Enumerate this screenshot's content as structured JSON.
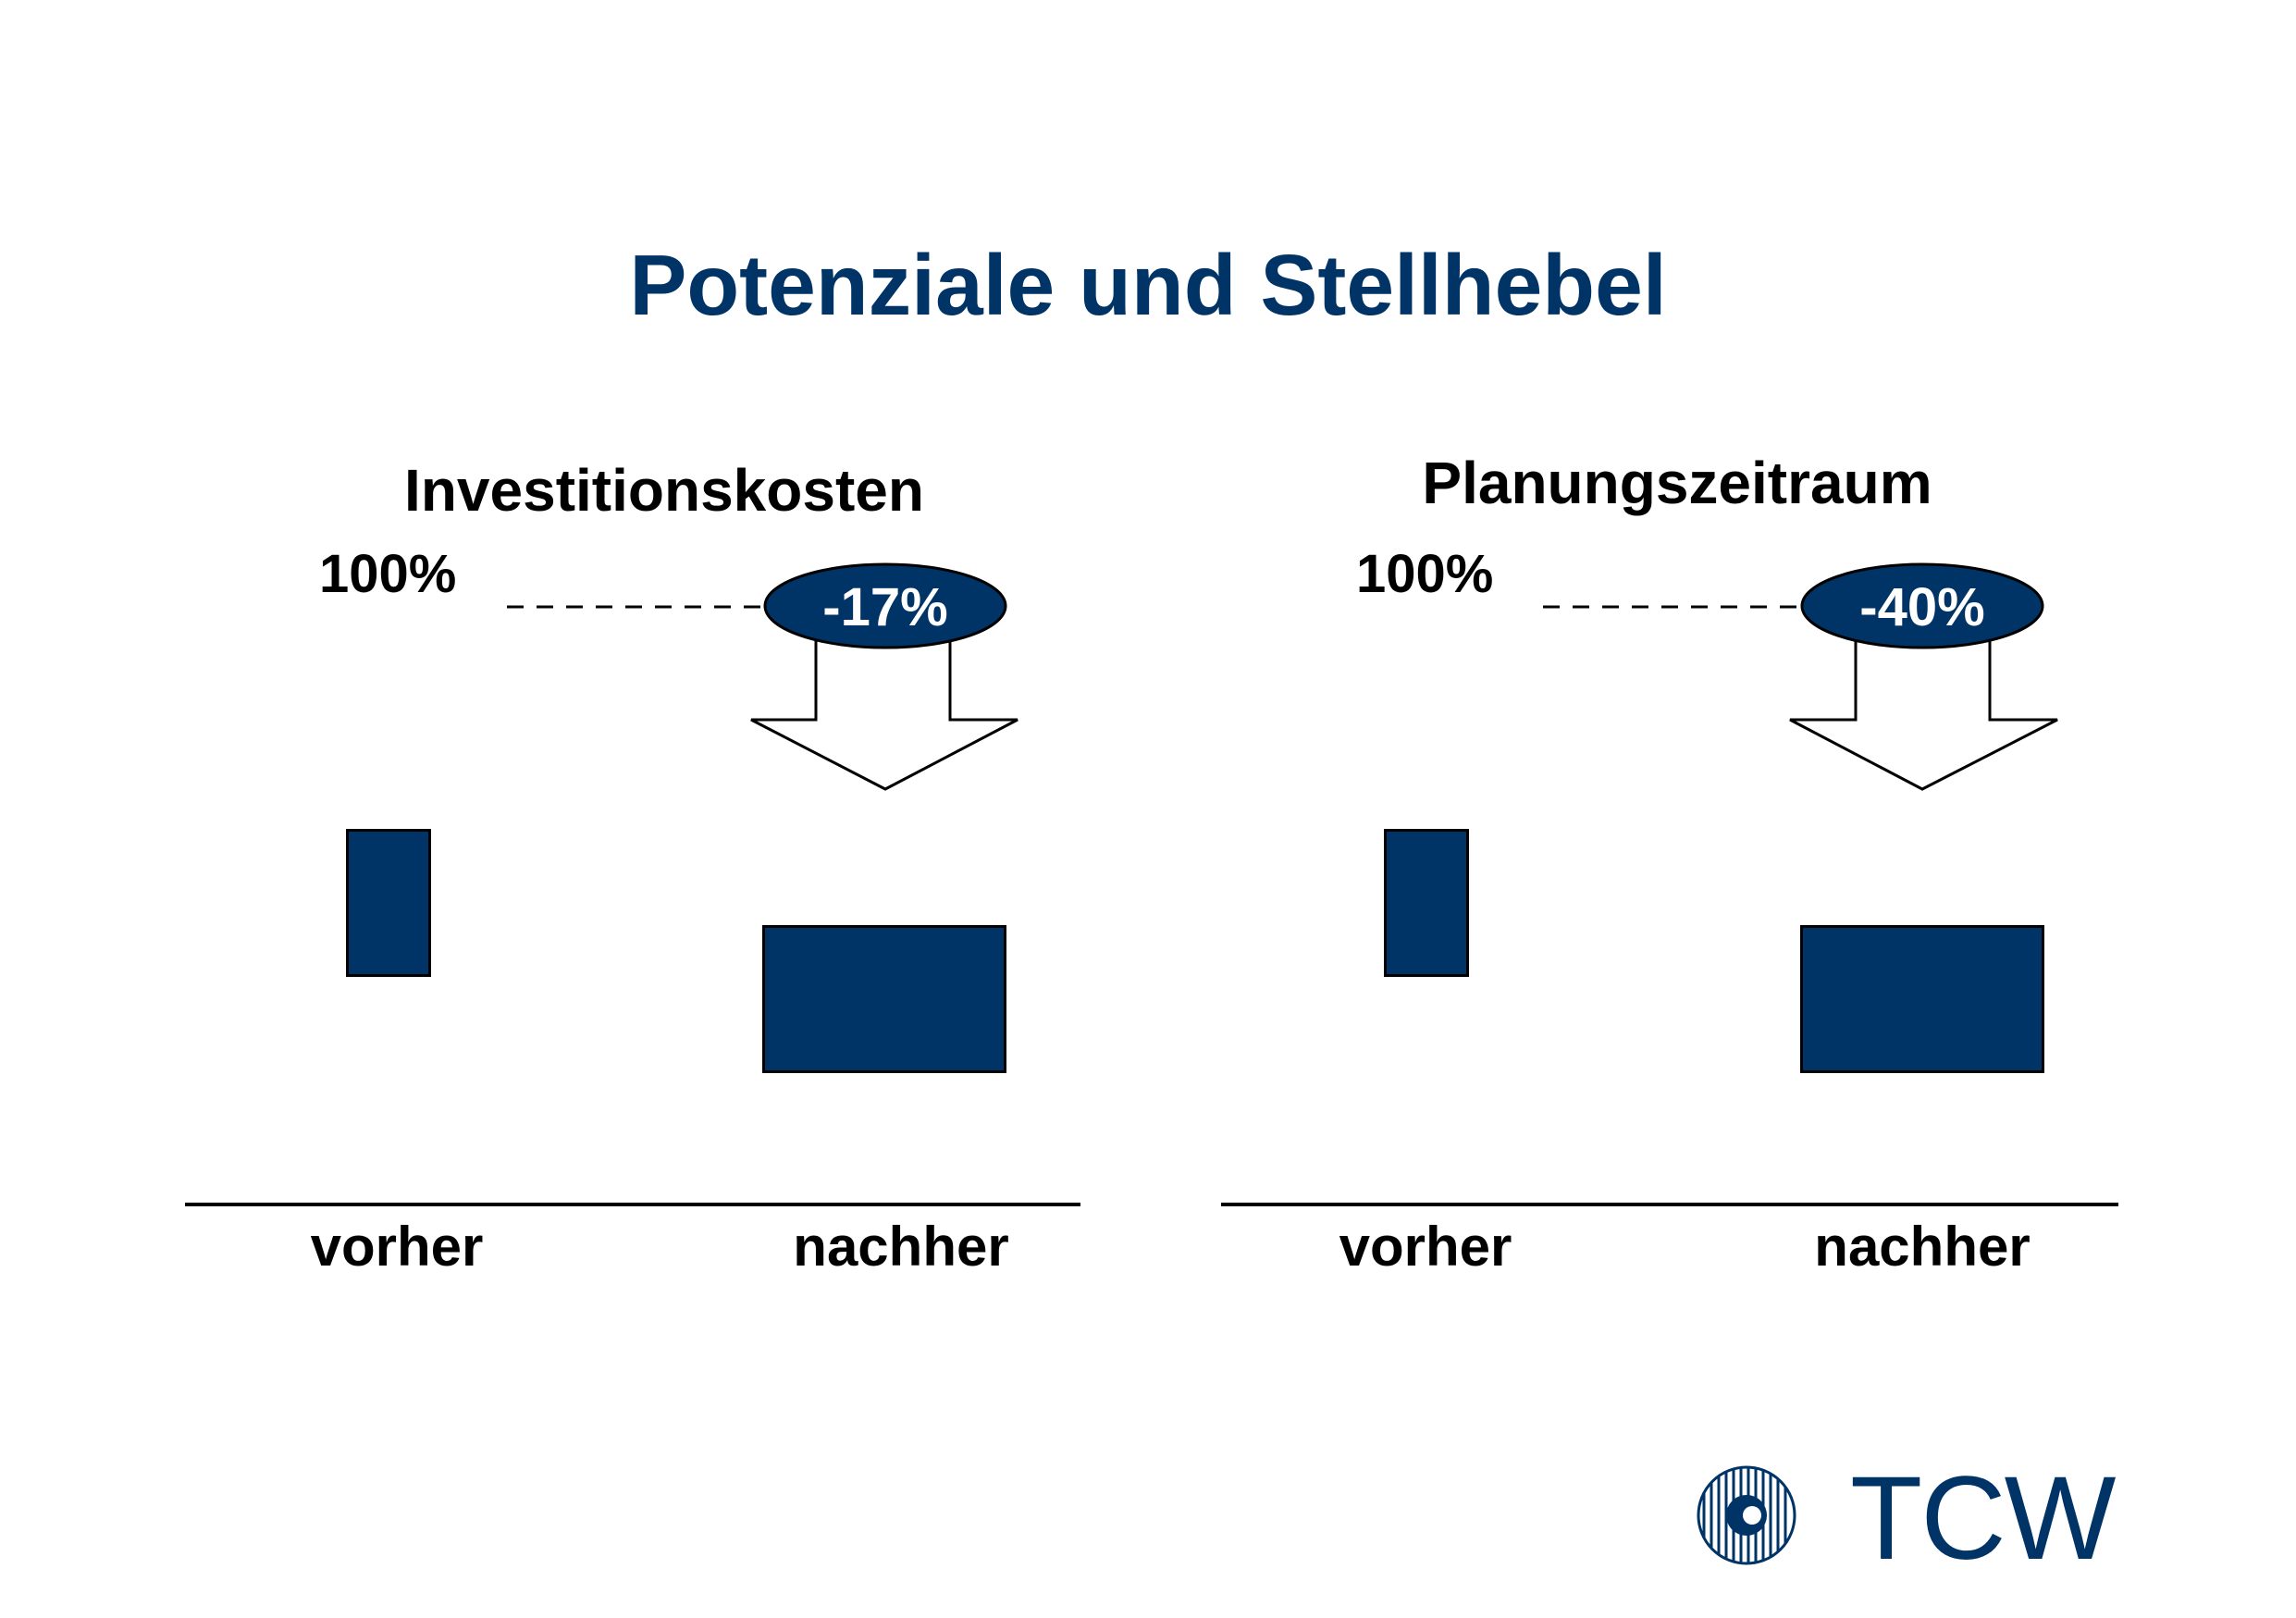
{
  "title": "Potenziale und Stellhebel",
  "colors": {
    "accent": "#003366",
    "text": "#000000",
    "background": "#ffffff"
  },
  "panels": [
    {
      "title": "Investitionskosten",
      "reference_label": "100%",
      "change_label": "-17%",
      "x_labels": [
        "vorher",
        "nachher"
      ]
    },
    {
      "title": "Planungszeitraum",
      "reference_label": "100%",
      "change_label": "-40%",
      "x_labels": [
        "vorher",
        "nachher"
      ]
    }
  ],
  "logo": {
    "text": "TCW",
    "icon": "tcw-circle-logo-icon"
  }
}
